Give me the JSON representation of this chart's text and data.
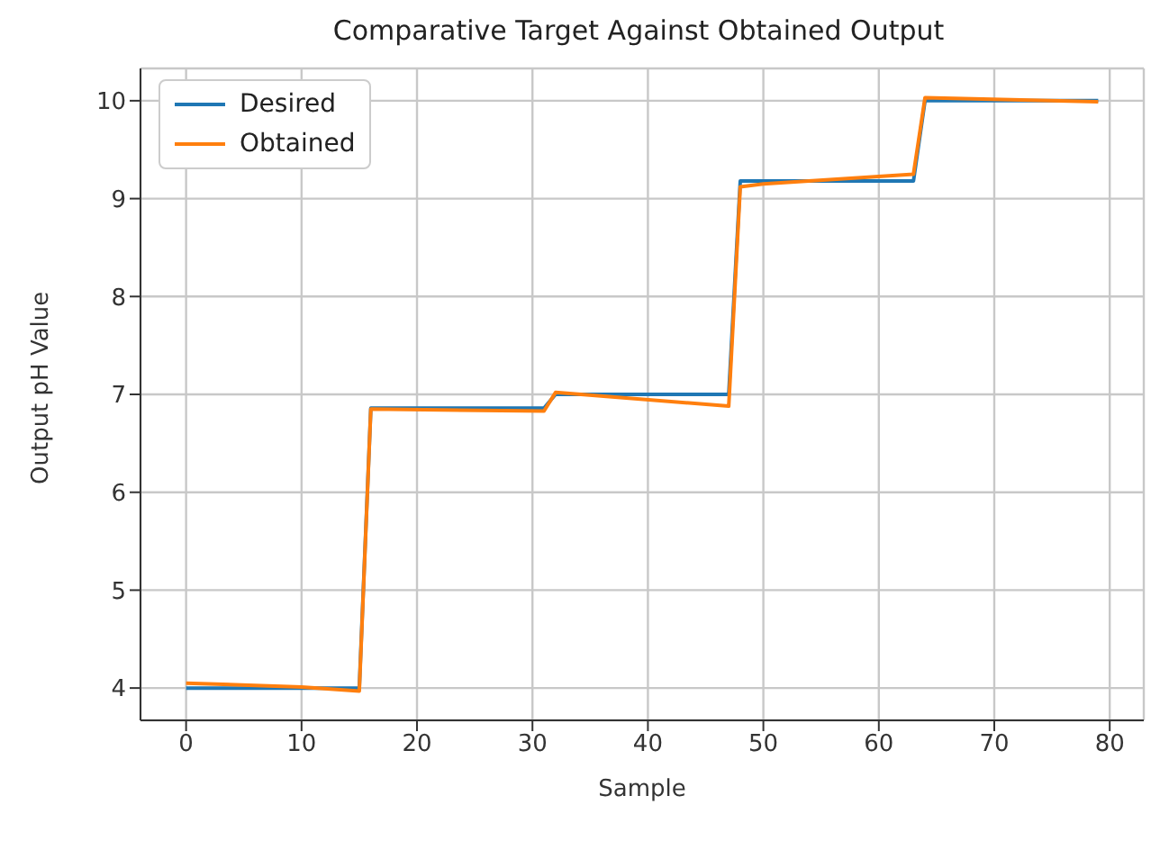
{
  "chart_data": {
    "type": "line",
    "title": "Comparative Target Against Obtained Output",
    "xlabel": "Sample",
    "ylabel": "Output pH Value",
    "xlim": [
      -3.95,
      82.95
    ],
    "xticks": [
      0,
      10,
      20,
      30,
      40,
      50,
      60,
      70,
      80
    ],
    "ylim": [
      3.67,
      10.33
    ],
    "yticks": [
      4,
      5,
      6,
      7,
      8,
      9,
      10
    ],
    "grid": true,
    "legend": "top left",
    "marker": "none",
    "line_style": "solid",
    "series": [
      {
        "name": "Desired",
        "color": "#1f77b4",
        "x": [
          0,
          15,
          16,
          31,
          32,
          47,
          48,
          63,
          64,
          79
        ],
        "values": [
          4.0,
          4.0,
          6.86,
          6.86,
          7.0,
          7.0,
          9.18,
          9.18,
          10.0,
          10.0
        ]
      },
      {
        "name": "Obtained",
        "color": "#ff7f0e",
        "x": [
          0,
          10,
          15,
          16,
          31,
          32,
          47,
          48,
          50,
          63,
          64,
          79
        ],
        "values": [
          4.05,
          4.01,
          3.97,
          6.85,
          6.83,
          7.02,
          6.88,
          9.12,
          9.15,
          9.25,
          10.03,
          9.99
        ]
      }
    ]
  }
}
